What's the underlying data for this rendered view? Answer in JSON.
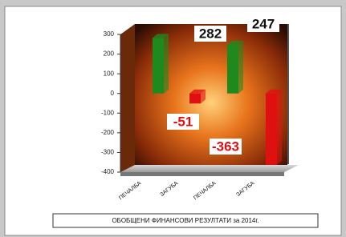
{
  "chart_data": {
    "type": "bar",
    "title": "ОБОБЩЕНИ ФИНАНСОВИ РЕЗУЛТАТИ за 2014г.",
    "categories": [
      "ПЕЧАЛБА",
      "ЗАГУБА",
      "ПЕЧАЛБА",
      "ЗАГУБА"
    ],
    "values": [
      282,
      -51,
      247,
      -363
    ],
    "colors": [
      "#1e8a1e",
      "#e01010",
      "#1e8a1e",
      "#e01010"
    ],
    "ylim": [
      -400,
      300
    ],
    "yticks": [
      -400,
      -300,
      -200,
      -100,
      0,
      100,
      200,
      300
    ]
  }
}
